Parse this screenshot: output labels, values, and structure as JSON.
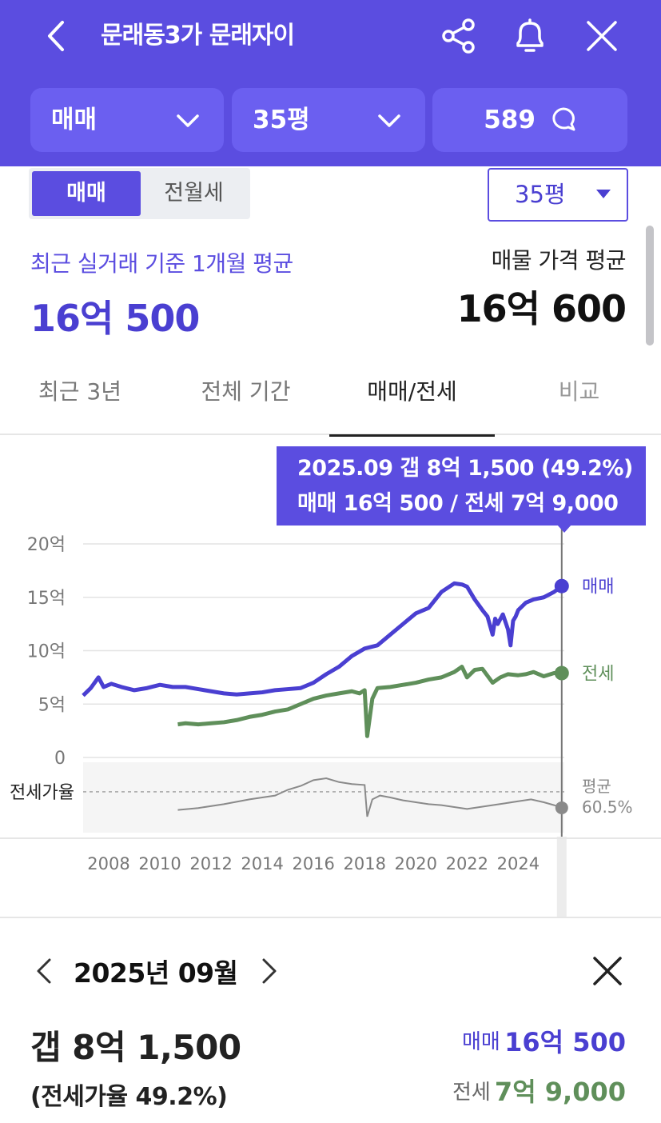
{
  "header": {
    "title": "문래동3가 문래자이",
    "filters": {
      "deal_type": "매매",
      "size": "35평",
      "comment_count": "589"
    }
  },
  "toggle": {
    "sale": "매매",
    "lease": "전월세",
    "selected": "매매"
  },
  "size_dropdown": {
    "value": "35평"
  },
  "summary": {
    "recent_label": "최근 실거래 기준 1개월 평균",
    "recent_price": "16억 500",
    "listing_label": "매물 가격 평균",
    "listing_price": "16억 600"
  },
  "tabs": [
    {
      "label": "최근 3년"
    },
    {
      "label": "전체 기간"
    },
    {
      "label": "매매/전세"
    },
    {
      "label": "비교"
    }
  ],
  "selected_tab": "매매/전세",
  "tooltip": {
    "line1": "2025.09  갭 8억 1,500 (49.2%)",
    "line2": "매매 16억 500 / 전세 7억 9,000"
  },
  "colors": {
    "brand": "#5b4de0",
    "sale_line": "#4a3fd1",
    "lease_line": "#5f8f5a",
    "ratio_line": "#8a8a8a"
  },
  "chart_data": {
    "type": "line",
    "y_ticks": [
      "20억",
      "15억",
      "10억",
      "5억",
      "0"
    ],
    "ylim": [
      0,
      20
    ],
    "x_ticks": [
      "2008",
      "2010",
      "2012",
      "2014",
      "2016",
      "2018",
      "2020",
      "2022",
      "2024"
    ],
    "xlim": [
      2007.0,
      2025.8
    ],
    "series": [
      {
        "name": "매매",
        "x": [
          2007.0,
          2007.3,
          2007.6,
          2007.8,
          2008.1,
          2008.5,
          2009.0,
          2009.5,
          2010.0,
          2010.5,
          2011.0,
          2011.5,
          2012.0,
          2012.5,
          2013.0,
          2013.5,
          2014.0,
          2014.5,
          2015.0,
          2015.5,
          2016.0,
          2016.5,
          2017.0,
          2017.5,
          2018.0,
          2018.5,
          2019.0,
          2019.5,
          2020.0,
          2020.5,
          2021.0,
          2021.5,
          2021.8,
          2022.0,
          2022.3,
          2022.6,
          2022.8,
          2023.0,
          2023.1,
          2023.2,
          2023.4,
          2023.6,
          2023.7,
          2023.8,
          2023.9,
          2024.0,
          2024.3,
          2024.6,
          2025.0,
          2025.4,
          2025.7
        ],
        "values": [
          5.8,
          6.5,
          7.5,
          6.6,
          6.9,
          6.6,
          6.3,
          6.5,
          6.8,
          6.6,
          6.6,
          6.4,
          6.2,
          6.0,
          5.9,
          6.0,
          6.1,
          6.3,
          6.4,
          6.5,
          7.0,
          7.8,
          8.5,
          9.5,
          10.2,
          10.5,
          11.5,
          12.5,
          13.5,
          14.0,
          15.5,
          16.3,
          16.2,
          16.0,
          14.8,
          13.8,
          13.2,
          11.5,
          13.0,
          12.5,
          13.4,
          12.0,
          10.5,
          12.8,
          13.2,
          13.8,
          14.5,
          14.8,
          15.0,
          15.5,
          16.05
        ]
      },
      {
        "name": "전세",
        "x": [
          2010.7,
          2011.0,
          2011.5,
          2012.0,
          2012.5,
          2013.0,
          2013.5,
          2014.0,
          2014.5,
          2015.0,
          2015.5,
          2016.0,
          2016.5,
          2017.0,
          2017.5,
          2017.8,
          2018.0,
          2018.1,
          2018.3,
          2018.5,
          2019.0,
          2019.5,
          2020.0,
          2020.5,
          2021.0,
          2021.5,
          2021.8,
          2022.0,
          2022.3,
          2022.6,
          2023.0,
          2023.3,
          2023.6,
          2024.0,
          2024.3,
          2024.6,
          2025.0,
          2025.4,
          2025.7
        ],
        "values": [
          3.1,
          3.2,
          3.1,
          3.2,
          3.3,
          3.5,
          3.8,
          4.0,
          4.3,
          4.5,
          5.0,
          5.5,
          5.8,
          6.0,
          6.2,
          6.0,
          6.3,
          2.0,
          5.5,
          6.5,
          6.6,
          6.8,
          7.0,
          7.3,
          7.5,
          8.0,
          8.5,
          7.5,
          8.2,
          8.3,
          7.0,
          7.5,
          7.8,
          7.7,
          7.8,
          8.0,
          7.6,
          7.9,
          7.9
        ]
      }
    ],
    "series_labels": [
      "매매",
      "전세"
    ],
    "ratio_panel": {
      "label": "전세가율",
      "average_label": "평균",
      "average_value": "60.5%",
      "x": [
        2010.7,
        2011.5,
        2012.5,
        2013.5,
        2014.5,
        2015.0,
        2015.5,
        2016.0,
        2016.5,
        2017.0,
        2017.5,
        2018.0,
        2018.1,
        2018.3,
        2018.6,
        2019.0,
        2019.5,
        2020.0,
        2020.5,
        2021.0,
        2021.5,
        2022.0,
        2022.5,
        2023.0,
        2023.5,
        2024.0,
        2024.5,
        2025.0,
        2025.4,
        2025.7
      ],
      "values": [
        47,
        49,
        53,
        58,
        62,
        68,
        72,
        78,
        80,
        76,
        74,
        73,
        40,
        58,
        62,
        60,
        57,
        55,
        53,
        52,
        50,
        48,
        50,
        52,
        54,
        56,
        58,
        55,
        52,
        49.2
      ]
    },
    "selected_point": {
      "x": "2025.09",
      "sale": 16.05,
      "lease": 7.9
    }
  },
  "detail": {
    "month": "2025년 09월",
    "gap": "갭 8억 1,500",
    "ratio": "(전세가율 49.2%)",
    "sale_label": "매매",
    "sale_value": "16억 500",
    "lease_label": "전세",
    "lease_value": "7억 9,000"
  }
}
